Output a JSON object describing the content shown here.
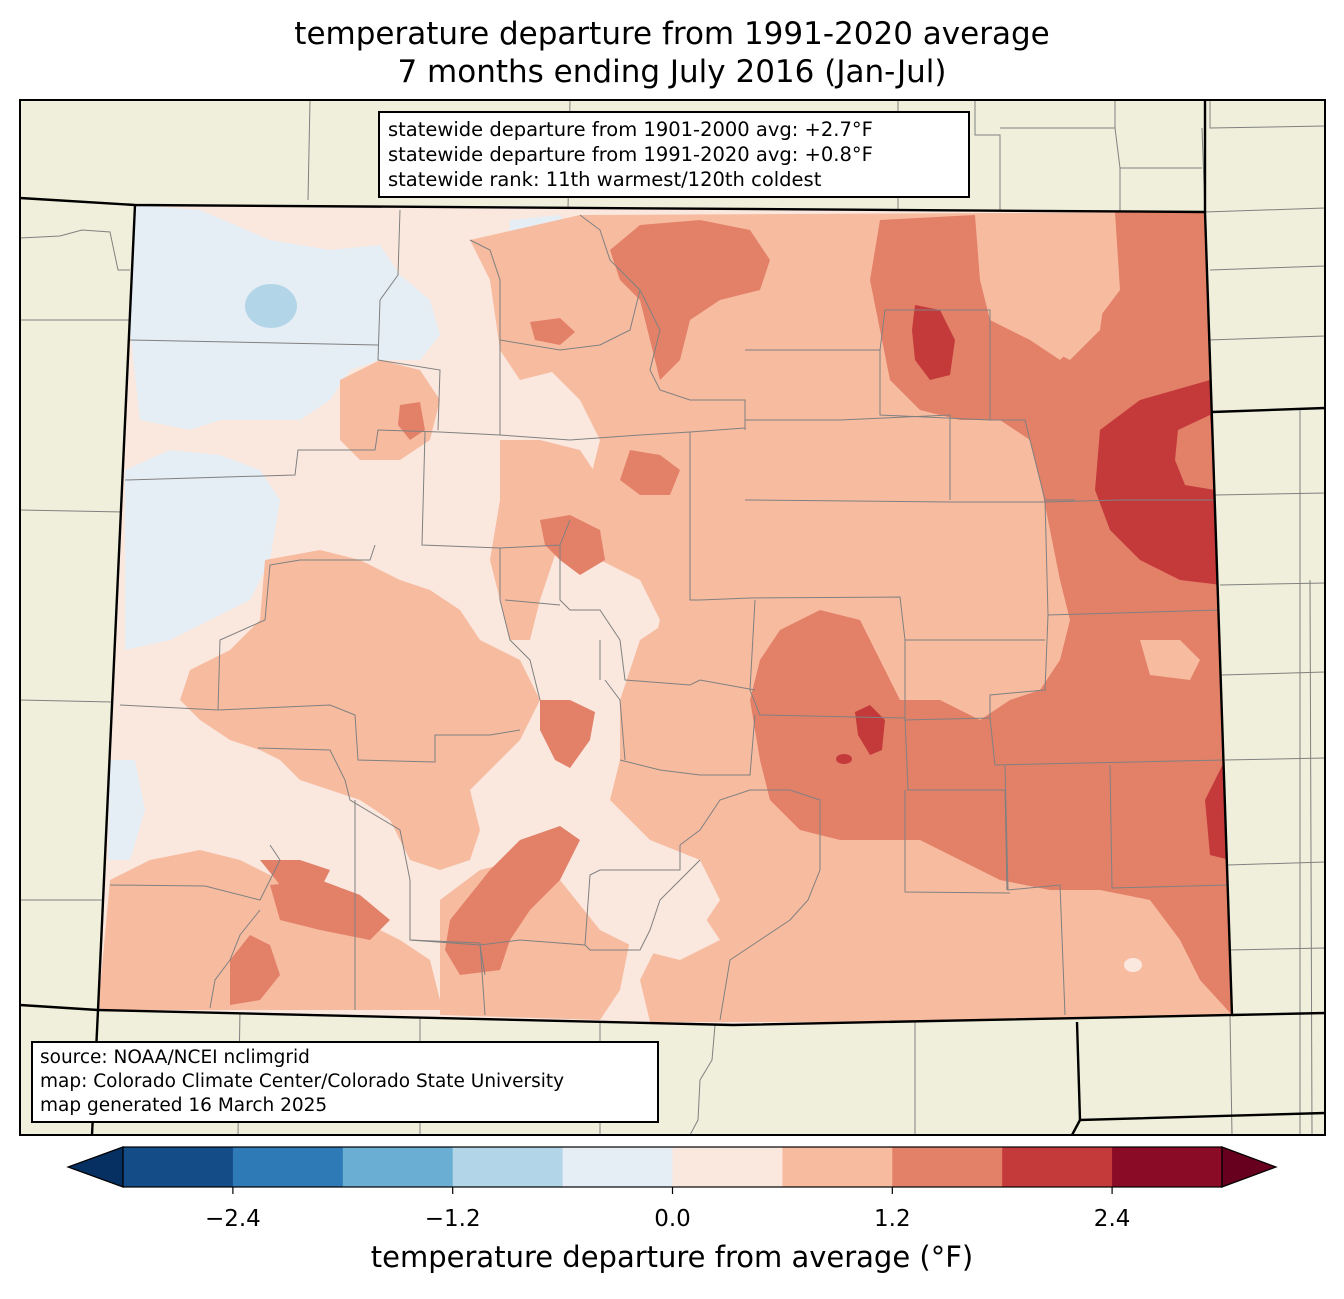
{
  "title": {
    "line1": "temperature departure from 1991-2020 average",
    "line2": "7 months ending July 2016 (Jan-Jul)"
  },
  "stats_box": {
    "line1": "statewide departure from 1901-2000 avg: +2.7°F",
    "line2": "statewide departure from 1991-2020 avg: +0.8°F",
    "line3": "statewide rank: 11th warmest/120th coldest"
  },
  "source_box": {
    "line1": "source: NOAA/NCEI nclimgrid",
    "line2": "map: Colorado Climate Center/Colorado State University",
    "line3": "map generated 16 March 2025"
  },
  "colorbar": {
    "label": "temperature departure from average (°F)",
    "ticks": [
      "−2.4",
      "−1.2",
      "0.0",
      "1.2",
      "2.4"
    ],
    "tick_values": [
      -2.4,
      -1.2,
      0.0,
      1.2,
      2.4
    ],
    "bins": [
      -3.0,
      -2.4,
      -1.8,
      -1.2,
      -0.6,
      0.0,
      0.6,
      1.2,
      1.8,
      2.4,
      3.0
    ],
    "colors": [
      "#144c87",
      "#2e7ab6",
      "#6aaed3",
      "#b2d5e7",
      "#e5edf5",
      "#fae8df",
      "#f7bba0",
      "#e38068",
      "#c43a3b",
      "#8a0b25"
    ],
    "under_color": "#053061",
    "over_color": "#67001f"
  },
  "map_colors": {
    "land_outside": "#efefdb",
    "state_border": "#000000",
    "county_border": "#808080"
  }
}
